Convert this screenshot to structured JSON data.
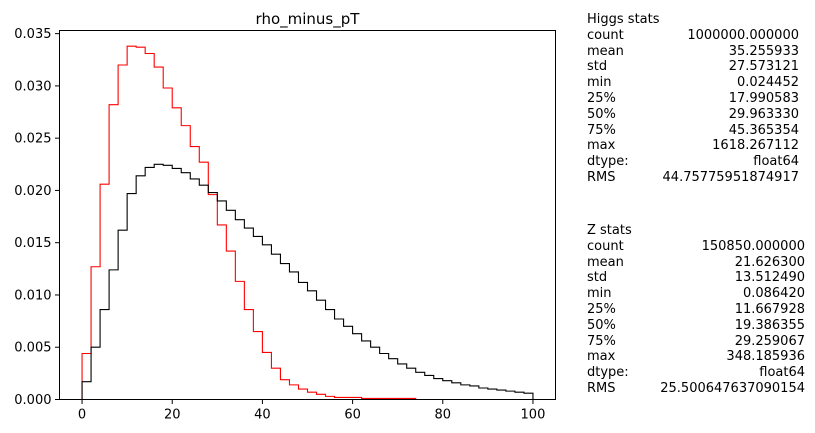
{
  "chart_data": {
    "type": "histogram",
    "title": "rho_minus_pT",
    "xlabel": "",
    "ylabel": "",
    "xlim": [
      -5,
      105
    ],
    "ylim": [
      0,
      0.0353
    ],
    "xticks": [
      "0",
      "20",
      "40",
      "60",
      "80",
      "100"
    ],
    "yticks": [
      "0.000",
      "0.005",
      "0.010",
      "0.015",
      "0.020",
      "0.025",
      "0.030",
      "0.035"
    ],
    "bin_edges": [
      0,
      2,
      4,
      6,
      8,
      10,
      12,
      14,
      16,
      18,
      20,
      22,
      24,
      26,
      28,
      30,
      32,
      34,
      36,
      38,
      40,
      42,
      44,
      46,
      48,
      50,
      52,
      54,
      56,
      58,
      60,
      62,
      64,
      66,
      68,
      70,
      72,
      74,
      76,
      78,
      80,
      82,
      84,
      86,
      88,
      90,
      92,
      94,
      96,
      98,
      100
    ],
    "series": [
      {
        "color": "#ff0000",
        "values": [
          0.0044,
          0.0127,
          0.0206,
          0.0282,
          0.032,
          0.0338,
          0.0337,
          0.0331,
          0.0318,
          0.0298,
          0.0279,
          0.0262,
          0.0242,
          0.0227,
          0.0196,
          0.0167,
          0.0142,
          0.0113,
          0.0086,
          0.0065,
          0.0045,
          0.003,
          0.0019,
          0.0014,
          0.001,
          0.0007,
          0.0005,
          0.0003,
          0.0002,
          0.0002,
          0.0002,
          0.0001,
          0.0001,
          0.0001,
          0.0001,
          0.0001,
          0.0001,
          0.0,
          0.0,
          0.0,
          0.0,
          0.0,
          0.0,
          0.0,
          0.0,
          0.0,
          0.0,
          0.0,
          0.0,
          0.0
        ]
      },
      {
        "color": "#000000",
        "values": [
          0.0017,
          0.005,
          0.0086,
          0.0124,
          0.0162,
          0.0197,
          0.0214,
          0.0222,
          0.0225,
          0.0224,
          0.0221,
          0.0217,
          0.0211,
          0.0205,
          0.0198,
          0.019,
          0.0181,
          0.0172,
          0.0164,
          0.0156,
          0.0148,
          0.0139,
          0.013,
          0.0122,
          0.0112,
          0.0104,
          0.0095,
          0.0086,
          0.0077,
          0.007,
          0.0063,
          0.0056,
          0.005,
          0.0044,
          0.0039,
          0.0034,
          0.003,
          0.0026,
          0.0023,
          0.002,
          0.0018,
          0.0016,
          0.0014,
          0.0013,
          0.0011,
          0.001,
          0.0009,
          0.0008,
          0.0007,
          0.0006
        ]
      }
    ]
  },
  "stats_panels": [
    {
      "heading": "Higgs stats",
      "rows": [
        {
          "label": "count",
          "value": "1000000.000000"
        },
        {
          "label": "mean",
          "value": "35.255933"
        },
        {
          "label": "std",
          "value": "27.573121"
        },
        {
          "label": "min",
          "value": "0.024452"
        },
        {
          "label": "25%",
          "value": "17.990583"
        },
        {
          "label": "50%",
          "value": "29.963330"
        },
        {
          "label": "75%",
          "value": "45.365354"
        },
        {
          "label": "max",
          "value": "1618.267112"
        },
        {
          "label": "dtype:",
          "value": "float64"
        },
        {
          "label": "RMS",
          "value": "44.75775951874917"
        }
      ]
    },
    {
      "heading": "Z stats",
      "rows": [
        {
          "label": "count",
          "value": "150850.000000"
        },
        {
          "label": "mean",
          "value": "21.626300"
        },
        {
          "label": "std",
          "value": "13.512490"
        },
        {
          "label": "min",
          "value": "0.086420"
        },
        {
          "label": "25%",
          "value": "11.667928"
        },
        {
          "label": "50%",
          "value": "19.386355"
        },
        {
          "label": "75%",
          "value": "29.259067"
        },
        {
          "label": "max",
          "value": "348.185936"
        },
        {
          "label": "dtype:",
          "value": "float64"
        },
        {
          "label": "RMS",
          "value": "25.500647637090154"
        }
      ]
    }
  ]
}
